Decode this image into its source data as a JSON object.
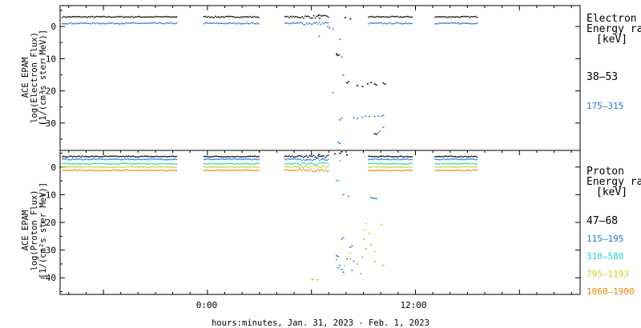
{
  "figure": {
    "xlabel": "hours:minutes, Jan. 31, 2023 - Feb.  1, 2023",
    "x_ticks": [
      "0:00",
      "12:00"
    ]
  },
  "chart_data": [
    {
      "type": "scatter",
      "panel": "electron",
      "ylabel_lines": [
        "ACE EPAM",
        "log(Electron Flux)",
        "[1/(cm²s ster MeV)]"
      ],
      "legend_title_lines": [
        "Electron",
        "Energy range",
        "[keV]"
      ],
      "legend_placement": "right",
      "xlim_hours": [
        -8.5,
        21.5
      ],
      "ylim": [
        -38.5,
        6.5
      ],
      "y_ticks": [
        0,
        -10,
        -20,
        -30
      ],
      "y_tick_labels": [
        "0",
        "−10",
        "−20",
        "−30"
      ],
      "x_ticks_hours": [
        0,
        12
      ],
      "gaps_hours": [
        [
          -1.8,
          -0.3
        ],
        [
          3.0,
          4.4
        ],
        [
          7.8,
          9.2
        ],
        [
          11.8,
          13.1
        ],
        [
          15.6,
          21.5
        ]
      ],
      "series": [
        {
          "name": "38–53",
          "color": "#000000",
          "baseline": 3.0,
          "legend_y": 95,
          "excursion_points": [
            [
              7.4,
              -8.5
            ],
            [
              7.45,
              -9.0
            ],
            [
              7.55,
              -8.8
            ],
            [
              8.0,
              -17.5
            ],
            [
              8.1,
              -17.2
            ],
            [
              8.6,
              -18.3
            ],
            [
              8.9,
              -18.6
            ],
            [
              9.2,
              -17.8
            ],
            [
              9.4,
              -17.4
            ],
            [
              9.6,
              -17.9
            ],
            [
              9.7,
              -18.2
            ],
            [
              10.1,
              -17.6
            ],
            [
              10.2,
              -17.9
            ],
            [
              9.6,
              -33.3
            ],
            [
              9.7,
              -33.5
            ],
            [
              7.9,
              2.8
            ],
            [
              8.2,
              2.4
            ],
            [
              6.4,
              3.6
            ]
          ]
        },
        {
          "name": "175–315",
          "color": "#1f77d4",
          "baseline": 1.0,
          "legend_y": 133,
          "excursion_points": [
            [
              6.4,
              -3.0
            ],
            [
              6.9,
              0.0
            ],
            [
              7.0,
              -0.5
            ],
            [
              7.2,
              -0.8
            ],
            [
              7.6,
              -4.0
            ],
            [
              7.7,
              -9.5
            ],
            [
              7.8,
              -15.0
            ],
            [
              7.5,
              -36.0
            ],
            [
              7.6,
              -36.3
            ],
            [
              7.2,
              -20.5
            ],
            [
              7.6,
              -29.0
            ],
            [
              7.7,
              -28.5
            ],
            [
              8.4,
              -28.3
            ],
            [
              8.6,
              -28.5
            ],
            [
              8.9,
              -28.2
            ],
            [
              9.1,
              -27.8
            ],
            [
              9.3,
              -27.9
            ],
            [
              9.6,
              -28.0
            ],
            [
              9.8,
              -27.8
            ],
            [
              10.0,
              -27.9
            ],
            [
              10.1,
              -27.5
            ],
            [
              9.8,
              -33.0
            ],
            [
              9.9,
              -32.5
            ],
            [
              10.1,
              -31.3
            ]
          ]
        }
      ]
    },
    {
      "type": "scatter",
      "panel": "proton",
      "ylabel_lines": [
        "ACE EPAM",
        "log(Proton Flux)",
        "[1/(cm²s ster MeV)]"
      ],
      "legend_title_lines": [
        "Proton",
        "Energy range",
        "[keV]"
      ],
      "legend_placement": "right",
      "xlim_hours": [
        -8.5,
        21.5
      ],
      "ylim": [
        -46,
        6
      ],
      "y_ticks": [
        0,
        -10,
        -20,
        -30,
        -40
      ],
      "y_tick_labels": [
        "0",
        "−10",
        "−20",
        "−30",
        "−40"
      ],
      "x_ticks_hours": [
        0,
        12
      ],
      "gaps_hours": [
        [
          -1.8,
          -0.3
        ],
        [
          3.0,
          4.4
        ],
        [
          7.8,
          9.2
        ],
        [
          11.8,
          13.1
        ],
        [
          15.6,
          21.5
        ]
      ],
      "series": [
        {
          "name": "47–68",
          "color": "#000000",
          "baseline": 3.8,
          "legend_y": 275,
          "excursion_points": [
            [
              7.6,
              5.0
            ],
            [
              7.7,
              5.5
            ],
            [
              7.3,
              4.8
            ],
            [
              8.0,
              4.4
            ],
            [
              6.4,
              4.5
            ]
          ]
        },
        {
          "name": "115–195",
          "color": "#1f77d4",
          "baseline": 2.8,
          "legend_y": 298,
          "excursion_points": [
            [
              7.8,
              -10.0
            ],
            [
              8.1,
              -10.5
            ],
            [
              9.4,
              -11.0
            ],
            [
              9.5,
              -11.2
            ],
            [
              9.7,
              -11.4
            ],
            [
              9.6,
              -11.3
            ],
            [
              7.8,
              -25.5
            ],
            [
              7.7,
              -26.0
            ],
            [
              8.2,
              -29.0
            ],
            [
              8.3,
              -28.5
            ],
            [
              7.4,
              -32.0
            ],
            [
              7.5,
              -32.3
            ],
            [
              7.6,
              -35.5
            ],
            [
              7.5,
              -36.4
            ],
            [
              7.7,
              -37.0
            ],
            [
              7.8,
              -38.0
            ],
            [
              8.0,
              -33.2
            ],
            [
              8.4,
              -34.0
            ],
            [
              8.3,
              -37.3
            ]
          ]
        },
        {
          "name": "310–580",
          "color": "#22cfcf",
          "baseline": 1.2,
          "legend_y": 320,
          "excursion_points": [
            [
              7.6,
              2.2
            ],
            [
              7.4,
              -5.0
            ],
            [
              7.5,
              -4.8
            ]
          ]
        },
        {
          "name": "795–1193",
          "color": "#cfcf1f",
          "baseline": 0.0,
          "legend_y": 343,
          "excursion_points": [
            [
              7.9,
              -35.5
            ],
            [
              8.2,
              -31.0
            ],
            [
              9.0,
              -22.8
            ],
            [
              9.1,
              -20.5
            ],
            [
              9.3,
              -24.0
            ],
            [
              9.6,
              -30.5
            ],
            [
              10.0,
              -20.7
            ]
          ]
        },
        {
          "name": "1060–1900",
          "color": "#e08a0a",
          "baseline": -1.2,
          "legend_y": 365,
          "excursion_points": [
            [
              6.0,
              -40.6
            ],
            [
              6.3,
              -40.7
            ],
            [
              7.4,
              -33.5
            ],
            [
              8.2,
              -33.0
            ],
            [
              8.6,
              -35.0
            ],
            [
              8.9,
              -32.5
            ],
            [
              9.0,
              -26.0
            ],
            [
              9.1,
              -29.5
            ],
            [
              9.4,
              -28.0
            ],
            [
              9.6,
              -34.0
            ],
            [
              10.1,
              -35.5
            ],
            [
              8.8,
              -38.5
            ]
          ]
        }
      ]
    }
  ]
}
